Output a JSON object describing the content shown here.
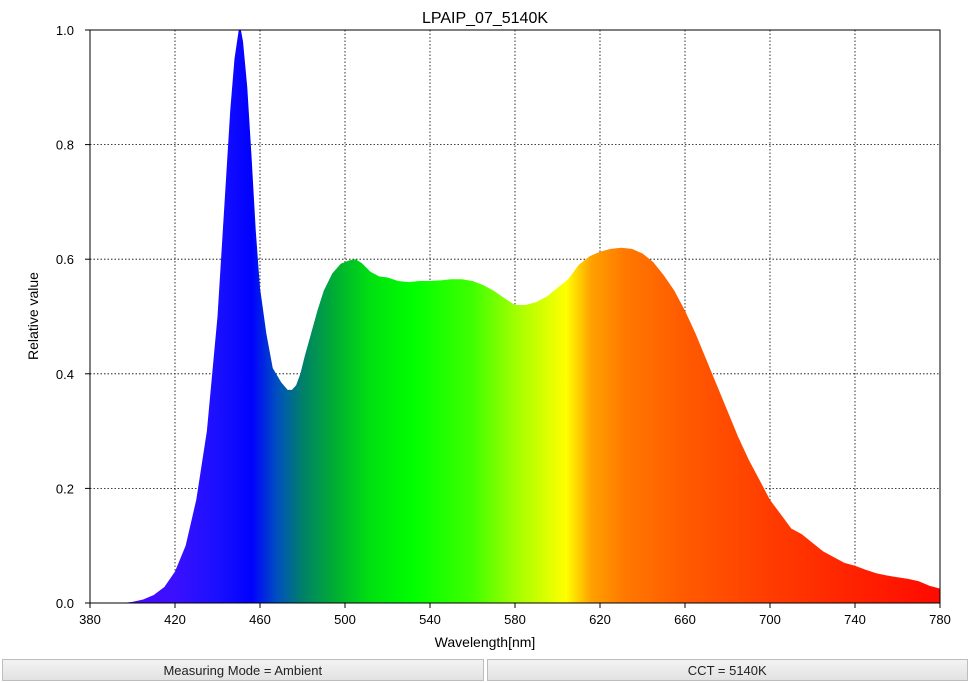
{
  "chart_data": {
    "type": "area",
    "title": "LPAIP_07_5140K",
    "xlabel": "Wavelength[nm]",
    "ylabel": "Relative value",
    "xlim": [
      380,
      780
    ],
    "ylim": [
      0,
      1.0
    ],
    "xticks": [
      "380",
      "420",
      "460",
      "500",
      "540",
      "580",
      "620",
      "660",
      "700",
      "740",
      "780"
    ],
    "yticks": [
      "0.0",
      "0.2",
      "0.4",
      "0.6",
      "0.8",
      "1.0"
    ],
    "grid": true,
    "fill": "visible-spectrum gradient",
    "x": [
      380,
      395,
      400,
      405,
      410,
      415,
      420,
      425,
      430,
      435,
      440,
      443,
      446,
      448,
      450,
      451,
      452,
      454,
      456,
      458,
      460,
      463,
      466,
      470,
      473,
      475,
      477,
      479,
      481,
      484,
      487,
      490,
      494,
      498,
      502,
      505,
      508,
      512,
      516,
      520,
      525,
      530,
      535,
      540,
      545,
      550,
      555,
      560,
      565,
      570,
      575,
      580,
      585,
      590,
      595,
      600,
      605,
      610,
      615,
      620,
      625,
      630,
      635,
      640,
      645,
      650,
      655,
      660,
      665,
      670,
      675,
      680,
      685,
      690,
      695,
      700,
      705,
      710,
      715,
      720,
      725,
      730,
      735,
      740,
      745,
      750,
      755,
      760,
      765,
      770,
      775,
      780
    ],
    "y": [
      0.0,
      0.0,
      0.002,
      0.006,
      0.014,
      0.028,
      0.055,
      0.1,
      0.18,
      0.3,
      0.5,
      0.68,
      0.86,
      0.95,
      1.0,
      1.0,
      0.98,
      0.9,
      0.78,
      0.65,
      0.55,
      0.47,
      0.41,
      0.385,
      0.372,
      0.372,
      0.38,
      0.4,
      0.43,
      0.47,
      0.51,
      0.545,
      0.575,
      0.592,
      0.598,
      0.6,
      0.593,
      0.578,
      0.57,
      0.568,
      0.562,
      0.56,
      0.562,
      0.562,
      0.563,
      0.565,
      0.565,
      0.562,
      0.555,
      0.545,
      0.532,
      0.52,
      0.52,
      0.525,
      0.535,
      0.55,
      0.565,
      0.59,
      0.605,
      0.613,
      0.618,
      0.62,
      0.618,
      0.61,
      0.595,
      0.572,
      0.545,
      0.51,
      0.47,
      0.425,
      0.38,
      0.335,
      0.29,
      0.25,
      0.215,
      0.18,
      0.155,
      0.13,
      0.12,
      0.105,
      0.09,
      0.08,
      0.07,
      0.065,
      0.058,
      0.052,
      0.048,
      0.045,
      0.042,
      0.038,
      0.03,
      0.025
    ]
  },
  "status": {
    "measuring_mode": "Measuring Mode = Ambient",
    "cct": "CCT = 5140K"
  }
}
